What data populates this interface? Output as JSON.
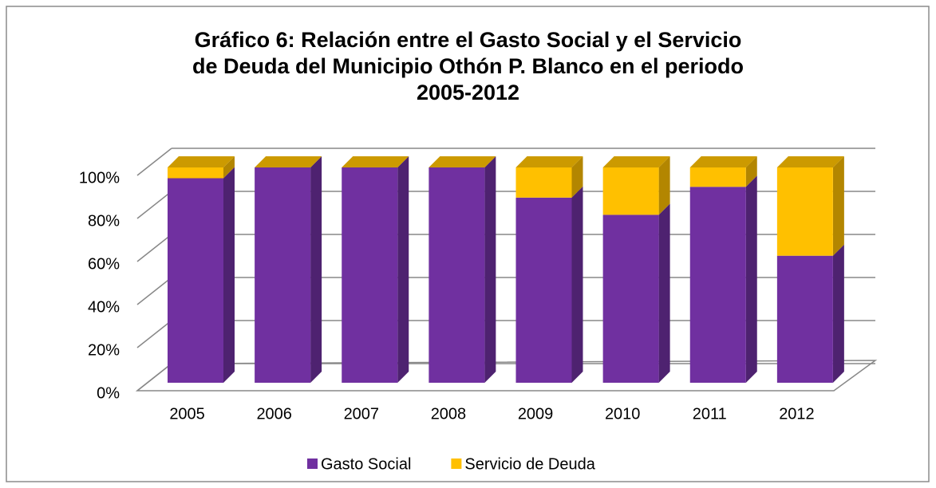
{
  "chart_data": {
    "type": "bar3d_stacked",
    "title": "Gráfico 6: Relación entre el Gasto Social y el Servicio de Deuda del Municipio Othón P. Blanco en el periodo 2005-2012",
    "categories": [
      "2005",
      "2006",
      "2007",
      "2008",
      "2009",
      "2010",
      "2011",
      "2012"
    ],
    "series": [
      {
        "name": "Gasto Social",
        "color": "#7030a0",
        "values": [
          95,
          100,
          100,
          100,
          86,
          78,
          91,
          59
        ]
      },
      {
        "name": "Servicio de Deuda",
        "color": "#ffc000",
        "values": [
          5,
          0,
          0,
          0,
          14,
          22,
          9,
          41
        ]
      }
    ],
    "ylim": [
      0,
      100
    ],
    "yticks": [
      {
        "value": 0,
        "label": "0%"
      },
      {
        "value": 20,
        "label": "20%"
      },
      {
        "value": 40,
        "label": "40%"
      },
      {
        "value": 60,
        "label": "60%"
      },
      {
        "value": 80,
        "label": "80%"
      },
      {
        "value": 100,
        "label": "100%"
      }
    ],
    "grid": true,
    "legend": "bottom"
  }
}
